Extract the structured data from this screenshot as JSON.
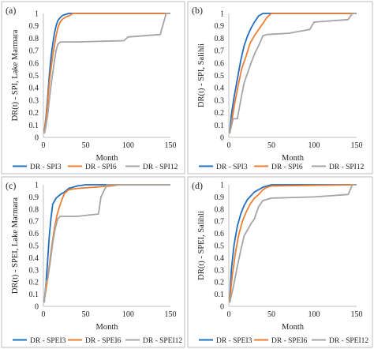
{
  "chart_data": [
    {
      "panel_label": "(a)",
      "type": "line",
      "ylabel": "DR(t) - SPI, Lake Marmara",
      "xlabel": "Month",
      "xlim": [
        0,
        150
      ],
      "ylim": [
        0,
        1
      ],
      "xticks": [
        "0",
        "50",
        "100",
        "150"
      ],
      "yticks": [
        "0",
        "0.1",
        "0.2",
        "0.3",
        "0.4",
        "0.5",
        "0.6",
        "0.7",
        "0.8",
        "0.9",
        "1"
      ],
      "grid": false,
      "legend_position": "bottom",
      "series": [
        {
          "name": "DR - SPI3",
          "color": "#1f6fc1",
          "x": [
            1,
            3,
            5,
            7,
            9,
            11,
            13,
            15,
            17,
            19,
            22,
            25,
            30,
            40,
            150
          ],
          "y": [
            0.05,
            0.16,
            0.32,
            0.5,
            0.65,
            0.75,
            0.84,
            0.9,
            0.94,
            0.96,
            0.98,
            0.99,
            1.0,
            1.0,
            1.0
          ]
        },
        {
          "name": "DR - SPI6",
          "color": "#ed7d31",
          "x": [
            1,
            3,
            5,
            7,
            9,
            11,
            13,
            15,
            17,
            19,
            22,
            26,
            30,
            35,
            150
          ],
          "y": [
            0.04,
            0.14,
            0.28,
            0.44,
            0.56,
            0.66,
            0.74,
            0.82,
            0.88,
            0.92,
            0.95,
            0.97,
            0.98,
            1.0,
            1.0
          ]
        },
        {
          "name": "DR - SPI12",
          "color": "#a5a5a5",
          "x": [
            1,
            3,
            5,
            7,
            9,
            11,
            13,
            15,
            17,
            20,
            40,
            95,
            100,
            138,
            145,
            150
          ],
          "y": [
            0.03,
            0.09,
            0.18,
            0.3,
            0.42,
            0.52,
            0.62,
            0.7,
            0.75,
            0.77,
            0.77,
            0.78,
            0.81,
            0.83,
            1.0,
            1.0
          ]
        }
      ]
    },
    {
      "panel_label": "(b)",
      "type": "line",
      "ylabel": "DR(t) - SPI, Salihli",
      "xlabel": "Month",
      "xlim": [
        0,
        150
      ],
      "ylim": [
        0,
        1
      ],
      "xticks": [
        "0",
        "50",
        "100",
        "150"
      ],
      "yticks": [
        "0",
        "0.1",
        "0.2",
        "0.3",
        "0.4",
        "0.5",
        "0.6",
        "0.7",
        "0.8",
        "0.9",
        "1"
      ],
      "grid": false,
      "legend_position": "bottom",
      "series": [
        {
          "name": "DR - SPI3",
          "color": "#1f6fc1",
          "x": [
            1,
            3,
            6,
            10,
            14,
            18,
            22,
            26,
            30,
            35,
            40,
            45,
            150
          ],
          "y": [
            0.04,
            0.18,
            0.32,
            0.47,
            0.62,
            0.74,
            0.82,
            0.88,
            0.93,
            0.98,
            1.0,
            1.0,
            1.0
          ]
        },
        {
          "name": "DR - SPI6",
          "color": "#ed7d31",
          "x": [
            1,
            4,
            7,
            11,
            15,
            20,
            25,
            30,
            35,
            40,
            45,
            50,
            150
          ],
          "y": [
            0.04,
            0.15,
            0.28,
            0.42,
            0.55,
            0.65,
            0.76,
            0.82,
            0.87,
            0.92,
            0.97,
            1.0,
            1.0
          ]
        },
        {
          "name": "DR - SPI12",
          "color": "#a5a5a5",
          "x": [
            1,
            5,
            10,
            14,
            18,
            22,
            26,
            30,
            35,
            40,
            45,
            70,
            95,
            100,
            140,
            145,
            150
          ],
          "y": [
            0.03,
            0.15,
            0.15,
            0.3,
            0.44,
            0.52,
            0.6,
            0.67,
            0.74,
            0.82,
            0.83,
            0.84,
            0.87,
            0.93,
            0.95,
            1.0,
            1.0
          ]
        }
      ]
    },
    {
      "panel_label": "(c)",
      "type": "line",
      "ylabel": "DR(t) - SPEI, Lake Marmara",
      "xlabel": "Month",
      "xlim": [
        0,
        150
      ],
      "ylim": [
        0,
        1
      ],
      "xticks": [
        "0",
        "50",
        "100",
        "150"
      ],
      "yticks": [
        "0",
        "0.1",
        "0.2",
        "0.3",
        "0.4",
        "0.5",
        "0.6",
        "0.7",
        "0.8",
        "0.9",
        "1"
      ],
      "grid": false,
      "legend_position": "bottom",
      "series": [
        {
          "name": "DR - SPEI3",
          "color": "#1f6fc1",
          "x": [
            1,
            3,
            5,
            7,
            9,
            11,
            15,
            20,
            25,
            30,
            40,
            50,
            150
          ],
          "y": [
            0.04,
            0.18,
            0.38,
            0.58,
            0.73,
            0.84,
            0.89,
            0.92,
            0.94,
            0.97,
            0.99,
            1.0,
            1.0
          ]
        },
        {
          "name": "DR - SPEI6",
          "color": "#ed7d31",
          "x": [
            1,
            4,
            7,
            10,
            13,
            16,
            19,
            22,
            25,
            30,
            40,
            60,
            80,
            90,
            150
          ],
          "y": [
            0.05,
            0.18,
            0.34,
            0.5,
            0.64,
            0.75,
            0.82,
            0.88,
            0.93,
            0.96,
            0.97,
            0.98,
            0.99,
            1.0,
            1.0
          ]
        },
        {
          "name": "DR - SPEI12",
          "color": "#a5a5a5",
          "x": [
            1,
            3,
            5,
            8,
            11,
            14,
            17,
            20,
            40,
            65,
            68,
            75,
            150
          ],
          "y": [
            0.03,
            0.2,
            0.22,
            0.36,
            0.52,
            0.64,
            0.72,
            0.74,
            0.74,
            0.76,
            0.9,
            1.0,
            1.0
          ]
        }
      ]
    },
    {
      "panel_label": "(d)",
      "type": "line",
      "ylabel": "DR(t) - SPEI, Salihli",
      "xlabel": "Month",
      "xlim": [
        0,
        150
      ],
      "ylim": [
        0,
        1
      ],
      "xticks": [
        "0",
        "50",
        "100",
        "150"
      ],
      "yticks": [
        "0",
        "0.1",
        "0.2",
        "0.3",
        "0.4",
        "0.5",
        "0.6",
        "0.7",
        "0.8",
        "0.9",
        "1"
      ],
      "grid": false,
      "legend_position": "bottom",
      "series": [
        {
          "name": "DR - SPEI3",
          "color": "#1f6fc1",
          "x": [
            1,
            3,
            6,
            10,
            14,
            18,
            22,
            26,
            30,
            35,
            40,
            45,
            50,
            150
          ],
          "y": [
            0.04,
            0.3,
            0.5,
            0.66,
            0.76,
            0.83,
            0.88,
            0.91,
            0.94,
            0.96,
            0.98,
            0.99,
            1.0,
            1.0
          ]
        },
        {
          "name": "DR - SPEI6",
          "color": "#ed7d31",
          "x": [
            1,
            4,
            8,
            12,
            16,
            20,
            25,
            30,
            35,
            40,
            45,
            50,
            150
          ],
          "y": [
            0.04,
            0.25,
            0.45,
            0.6,
            0.7,
            0.77,
            0.84,
            0.89,
            0.92,
            0.96,
            0.98,
            0.99,
            1.0
          ]
        },
        {
          "name": "DR - SPEI12",
          "color": "#a5a5a5",
          "x": [
            1,
            5,
            10,
            14,
            18,
            22,
            26,
            30,
            35,
            40,
            45,
            50,
            100,
            140,
            145,
            150
          ],
          "y": [
            0.03,
            0.15,
            0.33,
            0.46,
            0.58,
            0.63,
            0.68,
            0.72,
            0.82,
            0.87,
            0.88,
            0.89,
            0.9,
            0.92,
            1.0,
            1.0
          ]
        }
      ]
    }
  ]
}
